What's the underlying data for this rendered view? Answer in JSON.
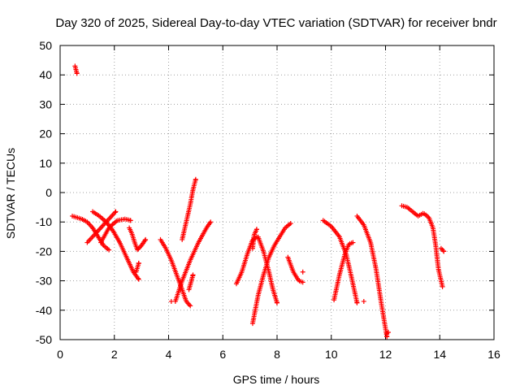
{
  "chart_data": {
    "type": "scatter",
    "title": "Day 320 of 2025, Sidereal Day-to-day VTEC variation (SDTVAR) for receiver bndr",
    "xlabel": "GPS time / hours",
    "ylabel": "SDTVAR / TECUs",
    "xlim": [
      0,
      16
    ],
    "ylim": [
      -50,
      50
    ],
    "xticks": [
      0,
      2,
      4,
      6,
      8,
      10,
      12,
      14,
      16
    ],
    "yticks": [
      -50,
      -40,
      -30,
      -20,
      -10,
      0,
      10,
      20,
      30,
      40,
      50
    ],
    "grid": true,
    "marker": "+",
    "color": "#ff0000",
    "tracks": [
      {
        "x": [
          0.55,
          0.62
        ],
        "y": [
          43,
          40.5
        ]
      },
      {
        "x": [
          0.45,
          0.8,
          1.0,
          1.2,
          1.4,
          1.6,
          1.8
        ],
        "y": [
          -8,
          -9,
          -10,
          -12,
          -15,
          -18,
          -19.5
        ]
      },
      {
        "x": [
          1.0,
          1.2,
          1.45,
          1.7,
          1.9,
          2.05
        ],
        "y": [
          -17,
          -15,
          -12.5,
          -10,
          -8,
          -6.5
        ]
      },
      {
        "x": [
          1.2,
          1.45,
          1.7,
          1.95,
          2.2,
          2.45,
          2.7,
          2.9
        ],
        "y": [
          -6.5,
          -8,
          -10,
          -13,
          -17,
          -22,
          -27,
          -29.5
        ]
      },
      {
        "x": [
          1.5,
          1.8,
          2.1,
          2.4,
          2.6
        ],
        "y": [
          -17,
          -12,
          -9.5,
          -9,
          -9.5
        ]
      },
      {
        "x": [
          2.55,
          2.65,
          2.75,
          2.85,
          3.0,
          3.15
        ],
        "y": [
          -12,
          -14,
          -17,
          -19.5,
          -18,
          -16
        ]
      },
      {
        "x": [
          2.8,
          2.9
        ],
        "y": [
          -27,
          -24
        ]
      },
      {
        "x": [
          3.7,
          3.9,
          4.1,
          4.3,
          4.5,
          4.65,
          4.8
        ],
        "y": [
          -16,
          -19,
          -23,
          -28,
          -33,
          -37,
          -38.5
        ]
      },
      {
        "x": [
          4.1
        ],
        "y": [
          -37
        ]
      },
      {
        "x": [
          4.5,
          4.65,
          4.8,
          4.9,
          5.0
        ],
        "y": [
          -16,
          -10,
          -4,
          1,
          4.5
        ]
      },
      {
        "x": [
          4.75,
          4.9
        ],
        "y": [
          -33,
          -28
        ]
      },
      {
        "x": [
          4.25,
          4.5,
          4.8,
          5.1,
          5.4,
          5.55
        ],
        "y": [
          -37,
          -30,
          -23,
          -17,
          -12,
          -10
        ]
      },
      {
        "x": [
          6.5,
          6.7,
          6.9,
          7.1,
          7.3,
          7.5,
          7.7,
          7.85,
          8.0
        ],
        "y": [
          -31,
          -27,
          -21,
          -16,
          -15,
          -20,
          -27,
          -33,
          -37.5
        ]
      },
      {
        "x": [
          7.1,
          7.3,
          7.5,
          7.7,
          7.9,
          8.1,
          8.3,
          8.5
        ],
        "y": [
          -44.5,
          -35,
          -28,
          -22,
          -18,
          -15,
          -12,
          -10.5
        ]
      },
      {
        "x": [
          7.1,
          7.15,
          7.25
        ],
        "y": [
          -19,
          -14.5,
          -12.5
        ]
      },
      {
        "x": [
          8.4,
          8.6,
          8.8,
          8.95
        ],
        "y": [
          -22,
          -27,
          -30,
          -30.5
        ]
      },
      {
        "x": [
          8.95
        ],
        "y": [
          -27
        ]
      },
      {
        "x": [
          9.7,
          10.0,
          10.3,
          10.55,
          10.75,
          10.95
        ],
        "y": [
          -9.5,
          -11.5,
          -15,
          -21,
          -29,
          -37.5
        ]
      },
      {
        "x": [
          10.1,
          10.3,
          10.5,
          10.65,
          10.8
        ],
        "y": [
          -36.5,
          -28,
          -21,
          -17.5,
          -17
        ]
      },
      {
        "x": [
          10.95,
          11.2,
          11.45,
          11.65,
          11.85,
          12.05
        ],
        "y": [
          -8,
          -11,
          -17,
          -26,
          -38,
          -49
        ]
      },
      {
        "x": [
          11.2
        ],
        "y": [
          -37
        ]
      },
      {
        "x": [
          12.05,
          12.1
        ],
        "y": [
          -48,
          -47.5
        ]
      },
      {
        "x": [
          12.6,
          12.8,
          13.0,
          13.2,
          13.4,
          13.6,
          13.75,
          13.85,
          13.95,
          14.1
        ],
        "y": [
          -4.5,
          -5,
          -6.5,
          -8,
          -7,
          -8.5,
          -12,
          -18,
          -26,
          -32
        ]
      },
      {
        "x": [
          14.05,
          14.15
        ],
        "y": [
          -19,
          -20
        ]
      }
    ]
  }
}
